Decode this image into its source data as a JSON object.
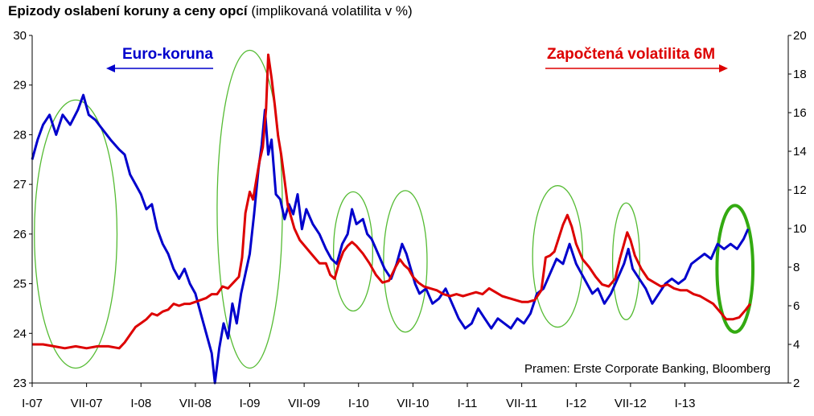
{
  "title": {
    "bold": "Epizody oslabení koruny a ceny opcí",
    "normal": "(implikovaná volatilita v %)"
  },
  "source": "Pramen: Erste Corporate Banking, Bloomberg",
  "colors": {
    "eur": "#0000cc",
    "vol": "#dd0000",
    "ellipse": "#55bb33",
    "ellipse_bold": "#33aa11"
  },
  "chart_data": {
    "type": "line",
    "title": "Epizody oslabení koruny a ceny opcí (implikovaná volatilita v %)",
    "x_tick_labels": [
      "I-07",
      "VII-07",
      "I-08",
      "VII-08",
      "I-09",
      "VII-09",
      "I-10",
      "VII-10",
      "I-11",
      "VII-11",
      "I-12",
      "VII-12",
      "I-13"
    ],
    "x_range": [
      2007.0,
      2013.95
    ],
    "y_left": {
      "min": 23,
      "max": 30,
      "ticks": [
        23,
        24,
        25,
        26,
        27,
        28,
        29,
        30
      ]
    },
    "y_right": {
      "min": 2,
      "max": 20,
      "ticks": [
        2,
        4,
        6,
        8,
        10,
        12,
        14,
        16,
        18,
        20
      ]
    },
    "grid": false,
    "series": [
      {
        "name": "Euro-koruna",
        "axis": "left",
        "points": [
          [
            2007.0,
            27.5
          ],
          [
            2007.05,
            27.9
          ],
          [
            2007.1,
            28.2
          ],
          [
            2007.16,
            28.4
          ],
          [
            2007.22,
            28.0
          ],
          [
            2007.28,
            28.4
          ],
          [
            2007.35,
            28.2
          ],
          [
            2007.42,
            28.5
          ],
          [
            2007.47,
            28.8
          ],
          [
            2007.52,
            28.4
          ],
          [
            2007.58,
            28.3
          ],
          [
            2007.65,
            28.1
          ],
          [
            2007.72,
            27.9
          ],
          [
            2007.8,
            27.7
          ],
          [
            2007.85,
            27.6
          ],
          [
            2007.9,
            27.2
          ],
          [
            2007.95,
            27.0
          ],
          [
            2008.0,
            26.8
          ],
          [
            2008.05,
            26.5
          ],
          [
            2008.1,
            26.6
          ],
          [
            2008.15,
            26.1
          ],
          [
            2008.2,
            25.8
          ],
          [
            2008.25,
            25.6
          ],
          [
            2008.3,
            25.3
          ],
          [
            2008.35,
            25.1
          ],
          [
            2008.4,
            25.3
          ],
          [
            2008.45,
            25.0
          ],
          [
            2008.5,
            24.8
          ],
          [
            2008.55,
            24.4
          ],
          [
            2008.6,
            24.0
          ],
          [
            2008.65,
            23.6
          ],
          [
            2008.68,
            23.0
          ],
          [
            2008.72,
            23.7
          ],
          [
            2008.76,
            24.2
          ],
          [
            2008.8,
            23.9
          ],
          [
            2008.84,
            24.6
          ],
          [
            2008.88,
            24.2
          ],
          [
            2008.92,
            24.8
          ],
          [
            2008.96,
            25.2
          ],
          [
            2009.0,
            25.6
          ],
          [
            2009.04,
            26.4
          ],
          [
            2009.08,
            27.3
          ],
          [
            2009.11,
            27.8
          ],
          [
            2009.14,
            28.5
          ],
          [
            2009.17,
            27.6
          ],
          [
            2009.2,
            27.9
          ],
          [
            2009.24,
            26.8
          ],
          [
            2009.28,
            26.7
          ],
          [
            2009.32,
            26.3
          ],
          [
            2009.36,
            26.6
          ],
          [
            2009.4,
            26.4
          ],
          [
            2009.44,
            26.8
          ],
          [
            2009.48,
            26.1
          ],
          [
            2009.52,
            26.5
          ],
          [
            2009.58,
            26.2
          ],
          [
            2009.64,
            26.0
          ],
          [
            2009.7,
            25.7
          ],
          [
            2009.75,
            25.5
          ],
          [
            2009.8,
            25.4
          ],
          [
            2009.85,
            25.8
          ],
          [
            2009.9,
            26.0
          ],
          [
            2009.94,
            26.5
          ],
          [
            2009.98,
            26.2
          ],
          [
            2010.04,
            26.3
          ],
          [
            2010.08,
            26.0
          ],
          [
            2010.12,
            25.9
          ],
          [
            2010.18,
            25.6
          ],
          [
            2010.24,
            25.3
          ],
          [
            2010.3,
            25.1
          ],
          [
            2010.35,
            25.4
          ],
          [
            2010.4,
            25.8
          ],
          [
            2010.44,
            25.6
          ],
          [
            2010.48,
            25.3
          ],
          [
            2010.52,
            25.0
          ],
          [
            2010.56,
            24.8
          ],
          [
            2010.62,
            24.9
          ],
          [
            2010.68,
            24.6
          ],
          [
            2010.74,
            24.7
          ],
          [
            2010.8,
            24.9
          ],
          [
            2010.86,
            24.6
          ],
          [
            2010.92,
            24.3
          ],
          [
            2010.98,
            24.1
          ],
          [
            2011.04,
            24.2
          ],
          [
            2011.1,
            24.5
          ],
          [
            2011.16,
            24.3
          ],
          [
            2011.22,
            24.1
          ],
          [
            2011.28,
            24.3
          ],
          [
            2011.34,
            24.2
          ],
          [
            2011.4,
            24.1
          ],
          [
            2011.46,
            24.3
          ],
          [
            2011.52,
            24.2
          ],
          [
            2011.58,
            24.4
          ],
          [
            2011.64,
            24.8
          ],
          [
            2011.7,
            24.9
          ],
          [
            2011.76,
            25.2
          ],
          [
            2011.82,
            25.5
          ],
          [
            2011.88,
            25.4
          ],
          [
            2011.94,
            25.8
          ],
          [
            2012.0,
            25.4
          ],
          [
            2012.05,
            25.2
          ],
          [
            2012.1,
            25.0
          ],
          [
            2012.15,
            24.8
          ],
          [
            2012.2,
            24.9
          ],
          [
            2012.26,
            24.6
          ],
          [
            2012.32,
            24.8
          ],
          [
            2012.38,
            25.1
          ],
          [
            2012.44,
            25.4
          ],
          [
            2012.48,
            25.7
          ],
          [
            2012.52,
            25.3
          ],
          [
            2012.58,
            25.1
          ],
          [
            2012.64,
            24.9
          ],
          [
            2012.7,
            24.6
          ],
          [
            2012.76,
            24.8
          ],
          [
            2012.82,
            25.0
          ],
          [
            2012.88,
            25.1
          ],
          [
            2012.94,
            25.0
          ],
          [
            2013.0,
            25.1
          ],
          [
            2013.06,
            25.4
          ],
          [
            2013.12,
            25.5
          ],
          [
            2013.18,
            25.6
          ],
          [
            2013.24,
            25.5
          ],
          [
            2013.3,
            25.8
          ],
          [
            2013.36,
            25.7
          ],
          [
            2013.42,
            25.8
          ],
          [
            2013.48,
            25.7
          ],
          [
            2013.54,
            25.9
          ],
          [
            2013.58,
            26.1
          ]
        ]
      },
      {
        "name": "Započtená volatilita 6M",
        "axis": "right",
        "points": [
          [
            2007.0,
            4.0
          ],
          [
            2007.1,
            4.0
          ],
          [
            2007.2,
            3.9
          ],
          [
            2007.3,
            3.8
          ],
          [
            2007.4,
            3.9
          ],
          [
            2007.5,
            3.8
          ],
          [
            2007.6,
            3.9
          ],
          [
            2007.7,
            3.9
          ],
          [
            2007.8,
            3.8
          ],
          [
            2007.85,
            4.1
          ],
          [
            2007.9,
            4.5
          ],
          [
            2007.95,
            4.9
          ],
          [
            2008.0,
            5.1
          ],
          [
            2008.05,
            5.3
          ],
          [
            2008.1,
            5.6
          ],
          [
            2008.15,
            5.5
          ],
          [
            2008.2,
            5.7
          ],
          [
            2008.25,
            5.8
          ],
          [
            2008.3,
            6.1
          ],
          [
            2008.35,
            6.0
          ],
          [
            2008.4,
            6.1
          ],
          [
            2008.45,
            6.1
          ],
          [
            2008.5,
            6.2
          ],
          [
            2008.55,
            6.3
          ],
          [
            2008.6,
            6.4
          ],
          [
            2008.65,
            6.6
          ],
          [
            2008.7,
            6.6
          ],
          [
            2008.75,
            7.0
          ],
          [
            2008.8,
            6.9
          ],
          [
            2008.85,
            7.2
          ],
          [
            2008.9,
            7.5
          ],
          [
            2008.93,
            8.5
          ],
          [
            2008.96,
            10.8
          ],
          [
            2009.0,
            11.9
          ],
          [
            2009.03,
            11.5
          ],
          [
            2009.06,
            12.5
          ],
          [
            2009.09,
            13.5
          ],
          [
            2009.12,
            14.2
          ],
          [
            2009.15,
            16.2
          ],
          [
            2009.17,
            19.0
          ],
          [
            2009.2,
            17.8
          ],
          [
            2009.23,
            16.4
          ],
          [
            2009.26,
            14.8
          ],
          [
            2009.29,
            13.8
          ],
          [
            2009.32,
            12.5
          ],
          [
            2009.35,
            11.2
          ],
          [
            2009.38,
            10.6
          ],
          [
            2009.41,
            10.0
          ],
          [
            2009.46,
            9.4
          ],
          [
            2009.52,
            9.0
          ],
          [
            2009.58,
            8.6
          ],
          [
            2009.64,
            8.2
          ],
          [
            2009.7,
            8.2
          ],
          [
            2009.74,
            7.6
          ],
          [
            2009.78,
            7.4
          ],
          [
            2009.82,
            8.2
          ],
          [
            2009.86,
            8.8
          ],
          [
            2009.9,
            9.1
          ],
          [
            2009.94,
            9.3
          ],
          [
            2009.98,
            9.1
          ],
          [
            2010.04,
            8.7
          ],
          [
            2010.1,
            8.2
          ],
          [
            2010.16,
            7.6
          ],
          [
            2010.22,
            7.2
          ],
          [
            2010.28,
            7.3
          ],
          [
            2010.34,
            8.0
          ],
          [
            2010.38,
            8.4
          ],
          [
            2010.42,
            8.1
          ],
          [
            2010.46,
            7.9
          ],
          [
            2010.5,
            7.5
          ],
          [
            2010.55,
            7.2
          ],
          [
            2010.6,
            7.0
          ],
          [
            2010.66,
            6.9
          ],
          [
            2010.72,
            6.8
          ],
          [
            2010.78,
            6.6
          ],
          [
            2010.84,
            6.5
          ],
          [
            2010.9,
            6.6
          ],
          [
            2010.96,
            6.5
          ],
          [
            2011.02,
            6.6
          ],
          [
            2011.08,
            6.7
          ],
          [
            2011.14,
            6.6
          ],
          [
            2011.2,
            6.9
          ],
          [
            2011.26,
            6.7
          ],
          [
            2011.32,
            6.5
          ],
          [
            2011.38,
            6.4
          ],
          [
            2011.44,
            6.3
          ],
          [
            2011.5,
            6.2
          ],
          [
            2011.56,
            6.2
          ],
          [
            2011.62,
            6.3
          ],
          [
            2011.68,
            6.8
          ],
          [
            2011.72,
            8.5
          ],
          [
            2011.76,
            8.6
          ],
          [
            2011.8,
            8.8
          ],
          [
            2011.84,
            9.5
          ],
          [
            2011.88,
            10.2
          ],
          [
            2011.92,
            10.7
          ],
          [
            2011.96,
            10.1
          ],
          [
            2012.0,
            9.2
          ],
          [
            2012.06,
            8.4
          ],
          [
            2012.12,
            8.0
          ],
          [
            2012.18,
            7.5
          ],
          [
            2012.24,
            7.1
          ],
          [
            2012.3,
            7.0
          ],
          [
            2012.36,
            7.4
          ],
          [
            2012.4,
            8.4
          ],
          [
            2012.44,
            9.2
          ],
          [
            2012.47,
            9.8
          ],
          [
            2012.5,
            9.4
          ],
          [
            2012.54,
            8.6
          ],
          [
            2012.6,
            7.9
          ],
          [
            2012.66,
            7.4
          ],
          [
            2012.72,
            7.2
          ],
          [
            2012.78,
            7.0
          ],
          [
            2012.84,
            7.1
          ],
          [
            2012.9,
            6.9
          ],
          [
            2012.96,
            6.8
          ],
          [
            2013.02,
            6.8
          ],
          [
            2013.08,
            6.6
          ],
          [
            2013.14,
            6.5
          ],
          [
            2013.2,
            6.3
          ],
          [
            2013.26,
            6.1
          ],
          [
            2013.32,
            5.7
          ],
          [
            2013.38,
            5.3
          ],
          [
            2013.44,
            5.3
          ],
          [
            2013.5,
            5.4
          ],
          [
            2013.56,
            5.8
          ],
          [
            2013.6,
            6.1
          ]
        ]
      }
    ],
    "annotations": {
      "eur_label": "Euro-koruna",
      "vol_label": "Započtená volatilita 6M"
    },
    "highlight_ellipses": [
      {
        "center_x": 2007.4,
        "center_y_left": 26.0,
        "span_x": 0.76,
        "span_y_left": 5.4,
        "bold": false
      },
      {
        "center_x": 2009.0,
        "center_y_left": 26.5,
        "span_x": 0.6,
        "span_y_left": 6.4,
        "bold": false
      },
      {
        "center_x": 2009.95,
        "center_y_left": 25.65,
        "span_x": 0.36,
        "span_y_left": 2.4,
        "bold": false
      },
      {
        "center_x": 2010.43,
        "center_y_left": 25.45,
        "span_x": 0.4,
        "span_y_left": 2.85,
        "bold": false
      },
      {
        "center_x": 2011.83,
        "center_y_left": 25.55,
        "span_x": 0.46,
        "span_y_left": 2.85,
        "bold": false
      },
      {
        "center_x": 2012.46,
        "center_y_left": 25.45,
        "span_x": 0.25,
        "span_y_left": 2.35,
        "bold": false
      },
      {
        "center_x": 2013.46,
        "center_y_left": 25.3,
        "span_x": 0.33,
        "span_y_left": 2.55,
        "bold": true
      }
    ]
  }
}
